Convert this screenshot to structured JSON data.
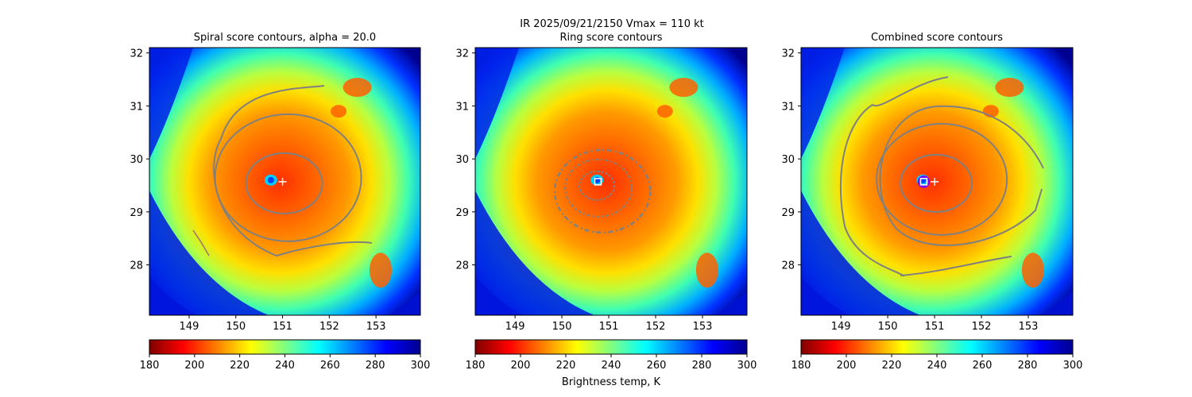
{
  "figure": {
    "suptitle": "IR  2025/09/21/2150    Vmax = 110 kt",
    "colorbar_label": "Brightness temp, K",
    "colormap": [
      "#800000",
      "#ff0000",
      "#ff8000",
      "#ffff00",
      "#80ff80",
      "#00ffff",
      "#0080ff",
      "#0000ff",
      "#00008f"
    ],
    "contour_color": "#808080"
  },
  "chart_data": [
    {
      "type": "heatmap",
      "title": "Spiral score contours, alpha = 20.0",
      "xlim": [
        148.15,
        153.95
      ],
      "ylim": [
        27.05,
        32.1
      ],
      "xticks": [
        "149",
        "150",
        "151",
        "152",
        "153"
      ],
      "yticks": [
        "28",
        "29",
        "30",
        "31",
        "32"
      ],
      "colorbar": {
        "vmin": 180,
        "vmax": 300,
        "ticks": [
          "180",
          "200",
          "220",
          "240",
          "260",
          "280",
          "300"
        ]
      },
      "markers": [
        {
          "kind": "plus",
          "x": 151.0,
          "y": 29.57,
          "color": "#ffffff"
        }
      ]
    },
    {
      "type": "heatmap",
      "title": "Ring score contours",
      "xlim": [
        148.15,
        153.95
      ],
      "ylim": [
        27.05,
        32.1
      ],
      "xticks": [
        "149",
        "150",
        "151",
        "152",
        "153"
      ],
      "yticks": [
        "28",
        "29",
        "30",
        "31",
        "32"
      ],
      "colorbar": {
        "vmin": 180,
        "vmax": 300,
        "ticks": [
          "180",
          "200",
          "220",
          "240",
          "260",
          "280",
          "300"
        ]
      },
      "markers": [
        {
          "kind": "square",
          "x": 150.77,
          "y": 29.57,
          "color": "#ffffff"
        }
      ]
    },
    {
      "type": "heatmap",
      "title": "Combined score contours",
      "xlim": [
        148.15,
        153.95
      ],
      "ylim": [
        27.05,
        32.1
      ],
      "xticks": [
        "149",
        "150",
        "151",
        "152",
        "153"
      ],
      "yticks": [
        "28",
        "29",
        "30",
        "31",
        "32"
      ],
      "colorbar": {
        "vmin": 180,
        "vmax": 300,
        "ticks": [
          "180",
          "200",
          "220",
          "240",
          "260",
          "280",
          "300"
        ]
      },
      "markers": [
        {
          "kind": "circle",
          "x": 150.77,
          "y": 29.57,
          "color": "#8000ff"
        },
        {
          "kind": "square",
          "x": 150.77,
          "y": 29.57,
          "color": "#ffffff"
        },
        {
          "kind": "plus",
          "x": 151.0,
          "y": 29.57,
          "color": "#ffffff"
        }
      ]
    }
  ]
}
